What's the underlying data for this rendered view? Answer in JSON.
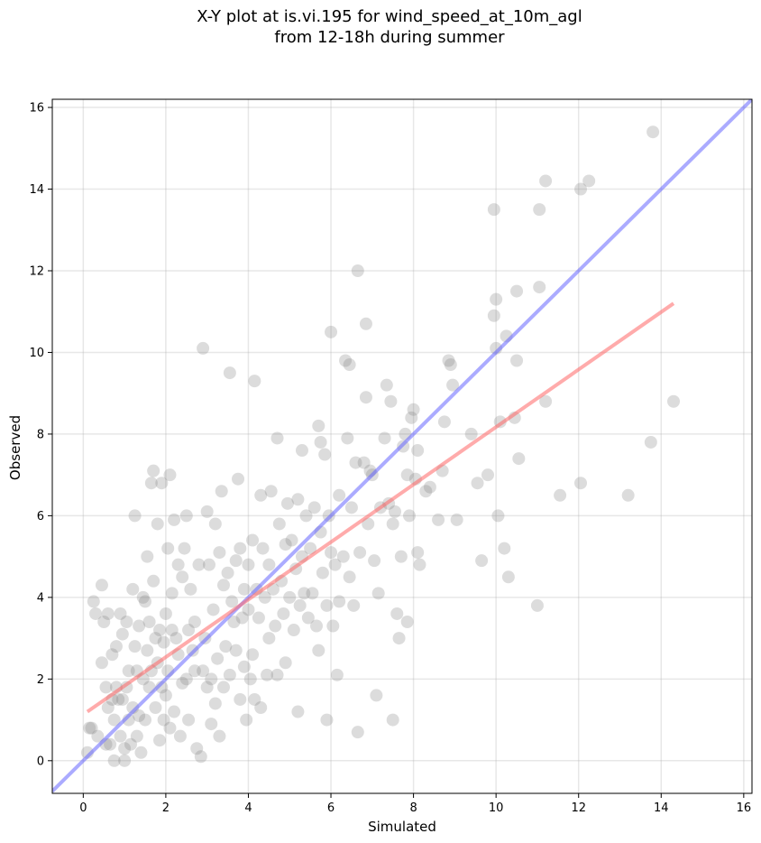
{
  "chart_data": {
    "type": "scatter",
    "title": [
      "X-Y plot at is.vi.195 for wind_speed_at_10m_agl",
      "from 12-18h during summer"
    ],
    "xlabel": "Simulated",
    "ylabel": "Observed",
    "xlim": [
      -0.75,
      16.2
    ],
    "ylim": [
      -0.8,
      16.2
    ],
    "xticks": [
      0,
      2,
      4,
      6,
      8,
      10,
      12,
      14,
      16
    ],
    "yticks": [
      0,
      2,
      4,
      6,
      8,
      10,
      12,
      14,
      16
    ],
    "grid": true,
    "colors": {
      "points": "#808080",
      "one_to_one": "#6666ff",
      "fit": "#ff6666"
    },
    "one_to_one_line": {
      "from": [
        -0.75,
        -0.75
      ],
      "to": [
        16.2,
        16.2
      ]
    },
    "fit_line": {
      "from": [
        0.1,
        1.2
      ],
      "to": [
        14.3,
        11.2
      ]
    },
    "points": [
      [
        0.1,
        0.2
      ],
      [
        0.15,
        0.8
      ],
      [
        0.2,
        0.8
      ],
      [
        0.25,
        3.9
      ],
      [
        0.3,
        3.6
      ],
      [
        0.35,
        0.6
      ],
      [
        0.45,
        2.4
      ],
      [
        0.45,
        4.3
      ],
      [
        0.5,
        3.4
      ],
      [
        0.55,
        1.8
      ],
      [
        0.55,
        0.4
      ],
      [
        0.6,
        3.6
      ],
      [
        0.6,
        1.3
      ],
      [
        0.65,
        0.4
      ],
      [
        0.7,
        2.6
      ],
      [
        0.7,
        1.5
      ],
      [
        0.75,
        1.0
      ],
      [
        0.75,
        0.0
      ],
      [
        0.8,
        2.8
      ],
      [
        0.8,
        1.8
      ],
      [
        0.85,
        1.5
      ],
      [
        0.9,
        3.6
      ],
      [
        0.9,
        0.6
      ],
      [
        0.95,
        3.1
      ],
      [
        0.95,
        1.5
      ],
      [
        1.0,
        0.3
      ],
      [
        1.0,
        0.0
      ],
      [
        1.05,
        3.4
      ],
      [
        1.05,
        1.8
      ],
      [
        1.1,
        2.2
      ],
      [
        1.1,
        1.0
      ],
      [
        1.15,
        0.4
      ],
      [
        1.2,
        4.2
      ],
      [
        1.2,
        1.3
      ],
      [
        1.25,
        6.0
      ],
      [
        1.25,
        2.8
      ],
      [
        1.3,
        2.2
      ],
      [
        1.3,
        0.6
      ],
      [
        1.35,
        3.3
      ],
      [
        1.35,
        1.1
      ],
      [
        1.4,
        0.2
      ],
      [
        1.45,
        4.0
      ],
      [
        1.45,
        2.0
      ],
      [
        1.5,
        3.9
      ],
      [
        1.5,
        1.0
      ],
      [
        1.55,
        5.0
      ],
      [
        1.55,
        2.7
      ],
      [
        1.6,
        3.4
      ],
      [
        1.6,
        1.8
      ],
      [
        1.65,
        2.2
      ],
      [
        1.65,
        6.8
      ],
      [
        1.7,
        7.1
      ],
      [
        1.7,
        4.4
      ],
      [
        1.75,
        3.0
      ],
      [
        1.75,
        1.3
      ],
      [
        1.8,
        5.8
      ],
      [
        1.8,
        2.4
      ],
      [
        1.85,
        3.2
      ],
      [
        1.85,
        0.5
      ],
      [
        1.9,
        6.8
      ],
      [
        1.9,
        1.8
      ],
      [
        1.95,
        2.9
      ],
      [
        1.95,
        1.0
      ],
      [
        2.0,
        3.6
      ],
      [
        2.0,
        1.6
      ],
      [
        2.05,
        5.2
      ],
      [
        2.05,
        2.2
      ],
      [
        2.1,
        7.0
      ],
      [
        2.1,
        0.8
      ],
      [
        2.15,
        4.1
      ],
      [
        2.15,
        3.2
      ],
      [
        2.2,
        5.9
      ],
      [
        2.2,
        1.2
      ],
      [
        2.25,
        3.0
      ],
      [
        2.3,
        4.8
      ],
      [
        2.3,
        2.6
      ],
      [
        2.35,
        0.6
      ],
      [
        2.4,
        4.5
      ],
      [
        2.4,
        1.9
      ],
      [
        2.45,
        5.2
      ],
      [
        2.5,
        6.0
      ],
      [
        2.5,
        2.0
      ],
      [
        2.55,
        3.2
      ],
      [
        2.55,
        1.0
      ],
      [
        2.6,
        4.2
      ],
      [
        2.65,
        2.7
      ],
      [
        2.7,
        3.4
      ],
      [
        2.7,
        2.2
      ],
      [
        2.75,
        0.3
      ],
      [
        2.8,
        4.8
      ],
      [
        2.85,
        0.1
      ],
      [
        2.9,
        10.1
      ],
      [
        2.9,
        2.2
      ],
      [
        2.95,
        3.0
      ],
      [
        3.0,
        6.1
      ],
      [
        3.0,
        1.8
      ],
      [
        3.05,
        4.8
      ],
      [
        3.1,
        0.9
      ],
      [
        3.1,
        2.0
      ],
      [
        3.15,
        3.7
      ],
      [
        3.2,
        5.8
      ],
      [
        3.2,
        1.4
      ],
      [
        3.25,
        2.5
      ],
      [
        3.3,
        5.1
      ],
      [
        3.3,
        0.6
      ],
      [
        3.35,
        6.6
      ],
      [
        3.4,
        4.3
      ],
      [
        3.4,
        1.8
      ],
      [
        3.45,
        2.8
      ],
      [
        3.5,
        4.6
      ],
      [
        3.55,
        9.5
      ],
      [
        3.55,
        2.1
      ],
      [
        3.6,
        3.9
      ],
      [
        3.65,
        3.4
      ],
      [
        3.7,
        4.9
      ],
      [
        3.7,
        2.7
      ],
      [
        3.75,
        6.9
      ],
      [
        3.8,
        1.5
      ],
      [
        3.8,
        5.2
      ],
      [
        3.85,
        3.5
      ],
      [
        3.9,
        4.2
      ],
      [
        3.9,
        2.3
      ],
      [
        3.95,
        1.0
      ],
      [
        4.0,
        4.8
      ],
      [
        4.0,
        3.7
      ],
      [
        4.05,
        2.0
      ],
      [
        4.1,
        5.4
      ],
      [
        4.1,
        2.6
      ],
      [
        4.15,
        9.3
      ],
      [
        4.15,
        1.5
      ],
      [
        4.2,
        4.2
      ],
      [
        4.25,
        3.5
      ],
      [
        4.3,
        6.5
      ],
      [
        4.3,
        1.3
      ],
      [
        4.35,
        5.2
      ],
      [
        4.4,
        4.0
      ],
      [
        4.45,
        2.1
      ],
      [
        4.5,
        4.8
      ],
      [
        4.5,
        3.0
      ],
      [
        4.55,
        6.6
      ],
      [
        4.6,
        4.2
      ],
      [
        4.65,
        3.3
      ],
      [
        4.7,
        7.9
      ],
      [
        4.7,
        2.1
      ],
      [
        4.75,
        5.8
      ],
      [
        4.8,
        4.4
      ],
      [
        4.85,
        3.6
      ],
      [
        4.9,
        5.3
      ],
      [
        4.9,
        2.4
      ],
      [
        4.95,
        6.3
      ],
      [
        5.0,
        4.0
      ],
      [
        5.05,
        5.4
      ],
      [
        5.1,
        3.2
      ],
      [
        5.15,
        4.7
      ],
      [
        5.2,
        1.2
      ],
      [
        5.2,
        6.4
      ],
      [
        5.25,
        3.8
      ],
      [
        5.3,
        7.6
      ],
      [
        5.3,
        5.0
      ],
      [
        5.35,
        4.1
      ],
      [
        5.4,
        6.0
      ],
      [
        5.45,
        3.5
      ],
      [
        5.5,
        5.2
      ],
      [
        5.55,
        4.1
      ],
      [
        5.6,
        6.2
      ],
      [
        5.65,
        3.3
      ],
      [
        5.7,
        8.2
      ],
      [
        5.7,
        2.7
      ],
      [
        5.75,
        5.6
      ],
      [
        5.75,
        7.8
      ],
      [
        5.8,
        4.6
      ],
      [
        5.85,
        7.5
      ],
      [
        5.9,
        1.0
      ],
      [
        5.9,
        3.8
      ],
      [
        5.95,
        6.0
      ],
      [
        6.0,
        10.5
      ],
      [
        6.0,
        5.1
      ],
      [
        6.05,
        3.3
      ],
      [
        6.1,
        4.8
      ],
      [
        6.15,
        2.1
      ],
      [
        6.2,
        6.5
      ],
      [
        6.2,
        3.9
      ],
      [
        6.3,
        5.0
      ],
      [
        6.35,
        9.8
      ],
      [
        6.4,
        7.9
      ],
      [
        6.45,
        9.7
      ],
      [
        6.45,
        4.5
      ],
      [
        6.5,
        6.2
      ],
      [
        6.55,
        3.8
      ],
      [
        6.6,
        7.3
      ],
      [
        6.65,
        12.0
      ],
      [
        6.65,
        0.7
      ],
      [
        6.7,
        5.1
      ],
      [
        6.8,
        7.3
      ],
      [
        6.85,
        10.7
      ],
      [
        6.85,
        8.9
      ],
      [
        6.9,
        5.8
      ],
      [
        6.95,
        7.1
      ],
      [
        7.0,
        7.0
      ],
      [
        7.05,
        4.9
      ],
      [
        7.1,
        1.6
      ],
      [
        7.15,
        4.1
      ],
      [
        7.2,
        6.2
      ],
      [
        7.3,
        7.9
      ],
      [
        7.35,
        9.2
      ],
      [
        7.4,
        6.3
      ],
      [
        7.45,
        8.8
      ],
      [
        7.5,
        1.0
      ],
      [
        7.5,
        5.8
      ],
      [
        7.55,
        6.1
      ],
      [
        7.6,
        3.6
      ],
      [
        7.65,
        3.0
      ],
      [
        7.7,
        5.0
      ],
      [
        7.75,
        7.7
      ],
      [
        7.8,
        8.0
      ],
      [
        7.85,
        3.4
      ],
      [
        7.85,
        7.0
      ],
      [
        7.9,
        6.0
      ],
      [
        7.95,
        8.4
      ],
      [
        8.0,
        8.6
      ],
      [
        8.05,
        6.9
      ],
      [
        8.1,
        7.6
      ],
      [
        8.1,
        5.1
      ],
      [
        8.15,
        4.8
      ],
      [
        8.3,
        6.6
      ],
      [
        8.4,
        6.7
      ],
      [
        8.6,
        5.9
      ],
      [
        8.7,
        7.1
      ],
      [
        8.75,
        8.3
      ],
      [
        8.85,
        9.8
      ],
      [
        8.9,
        9.7
      ],
      [
        8.95,
        9.2
      ],
      [
        9.05,
        5.9
      ],
      [
        9.4,
        8.0
      ],
      [
        9.55,
        6.8
      ],
      [
        9.65,
        4.9
      ],
      [
        9.8,
        7.0
      ],
      [
        9.95,
        13.5
      ],
      [
        9.95,
        10.9
      ],
      [
        10.0,
        11.3
      ],
      [
        10.0,
        10.1
      ],
      [
        10.05,
        6.0
      ],
      [
        10.1,
        8.3
      ],
      [
        10.2,
        5.2
      ],
      [
        10.25,
        10.4
      ],
      [
        10.3,
        4.5
      ],
      [
        10.45,
        8.4
      ],
      [
        10.5,
        11.5
      ],
      [
        10.5,
        9.8
      ],
      [
        10.55,
        7.4
      ],
      [
        11.0,
        3.8
      ],
      [
        11.05,
        11.6
      ],
      [
        11.05,
        13.5
      ],
      [
        11.2,
        14.2
      ],
      [
        11.2,
        8.8
      ],
      [
        11.55,
        6.5
      ],
      [
        12.05,
        14.0
      ],
      [
        12.05,
        6.8
      ],
      [
        12.25,
        14.2
      ],
      [
        13.2,
        6.5
      ],
      [
        13.75,
        7.8
      ],
      [
        13.8,
        15.4
      ],
      [
        14.3,
        8.8
      ]
    ]
  }
}
